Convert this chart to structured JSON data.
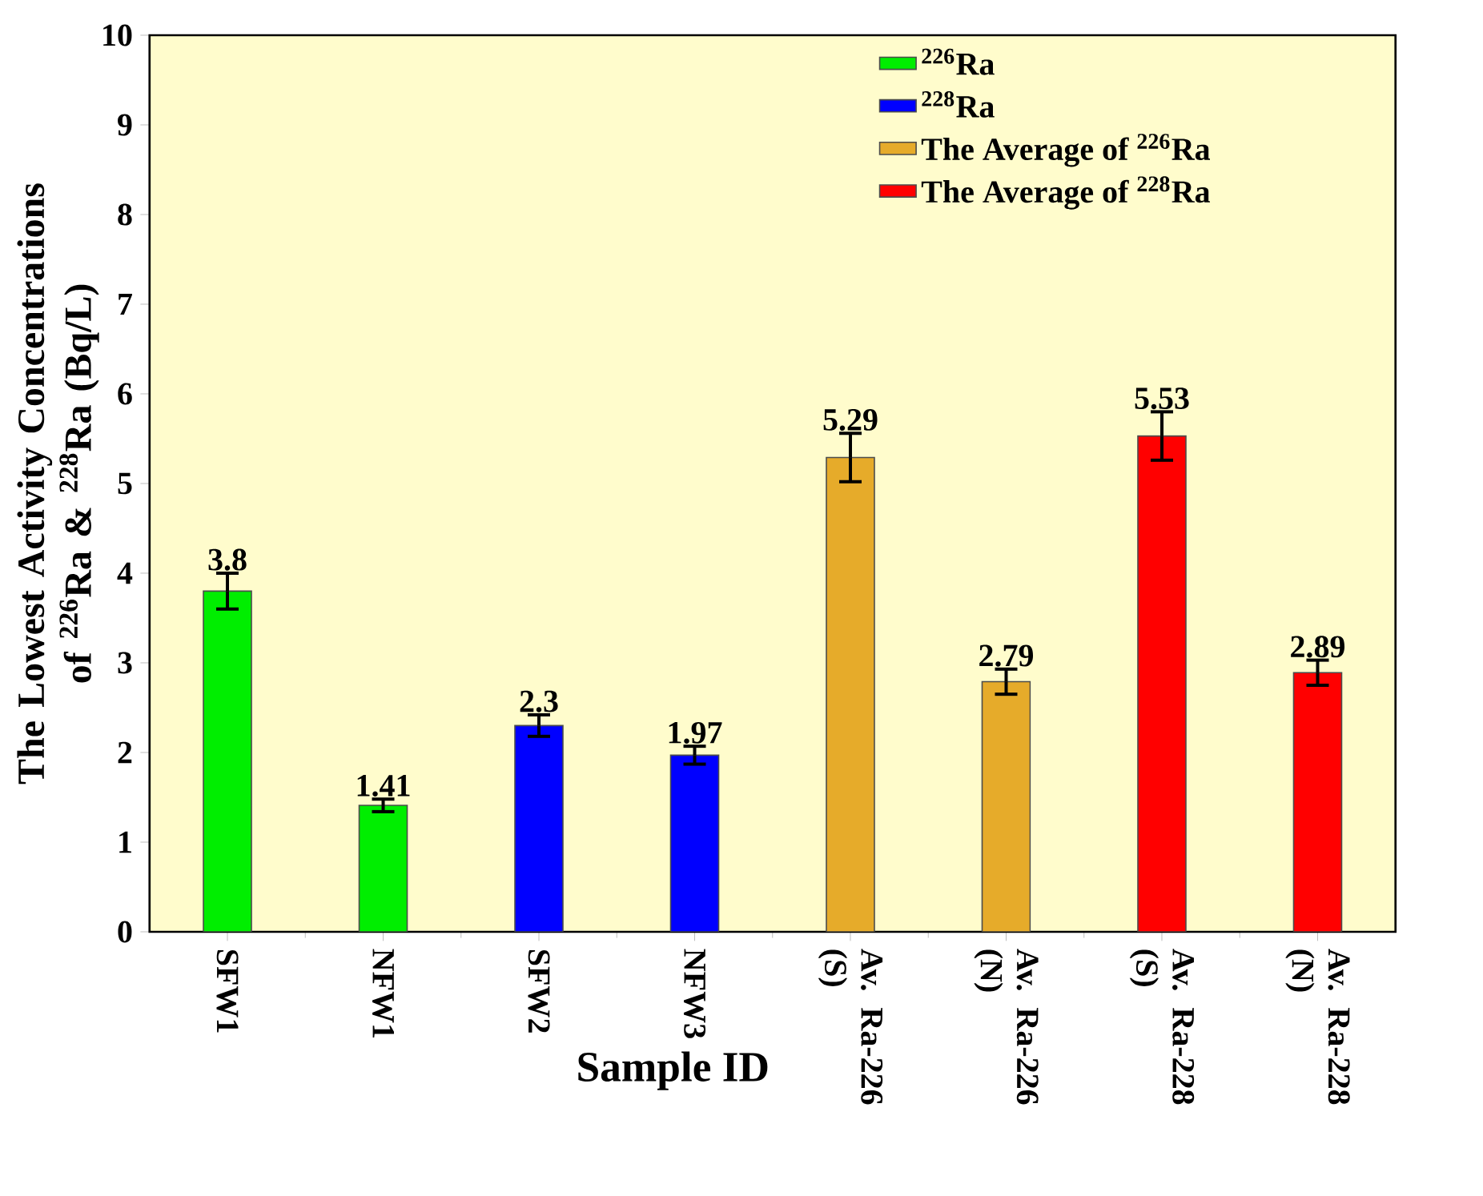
{
  "chart_data": {
    "type": "bar",
    "xlabel": "Sample ID",
    "ylabel": "The Lowest Activity Concentrations of $^{226}$Ra & $^{228}$Ra (Bq/L)",
    "categories": [
      "SFW1",
      "NFW1",
      "SFW2",
      "NFW3",
      "Av. Ra-226 (S)",
      "Av. Ra-226 (N)",
      "Av. Ra-228 (S)",
      "Av. Ra-228 (N)"
    ],
    "series": [
      {
        "name": "$^{226}$Ra",
        "color": "#00ee00",
        "values": [
          3.8,
          1.41,
          null,
          null,
          null,
          null,
          null,
          null
        ],
        "errors": [
          0.2,
          0.07,
          null,
          null,
          null,
          null,
          null,
          null
        ]
      },
      {
        "name": "$^{228}$Ra",
        "color": "#0000ff",
        "values": [
          null,
          null,
          2.3,
          1.97,
          null,
          null,
          null,
          null
        ],
        "errors": [
          null,
          null,
          0.12,
          0.1,
          null,
          null,
          null,
          null
        ]
      },
      {
        "name": "The Average of $^{226}$Ra",
        "color": "#e6ab2a",
        "values": [
          null,
          null,
          null,
          null,
          5.29,
          2.79,
          null,
          null
        ],
        "errors": [
          null,
          null,
          null,
          null,
          0.27,
          0.14,
          null,
          null
        ]
      },
      {
        "name": "The Average of $^{228}$Ra",
        "color": "#ff0000",
        "values": [
          null,
          null,
          null,
          null,
          null,
          null,
          5.53,
          2.89
        ],
        "errors": [
          null,
          null,
          null,
          null,
          null,
          null,
          0.27,
          0.14
        ]
      }
    ],
    "ylim": [
      0,
      10
    ],
    "yticks": [
      0,
      1,
      2,
      3,
      4,
      5,
      6,
      7,
      8,
      9,
      10
    ],
    "data_labels": true,
    "legend": "top right",
    "grid": false
  }
}
